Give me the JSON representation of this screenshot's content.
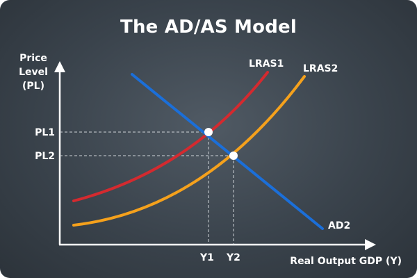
{
  "title": "The AD/AS Model",
  "axes": {
    "y_label_lines": [
      "Price",
      "Level",
      "(PL)"
    ],
    "x_label": "Real Output GDP (Y)"
  },
  "curves": {
    "lras1": {
      "label": "LRAS1",
      "color": "#d42a2f"
    },
    "lras2": {
      "label": "LRAS2",
      "color": "#f5a11c"
    },
    "ad2": {
      "label": "AD2",
      "color": "#1b6fd9"
    }
  },
  "equilibria": {
    "e1": {
      "price_label": "PL1",
      "output_label": "Y1"
    },
    "e2": {
      "price_label": "PL2",
      "output_label": "Y2"
    }
  },
  "colors": {
    "background": "#3e4750",
    "axis": "#ffffff",
    "guide": "#cfd4d8"
  }
}
